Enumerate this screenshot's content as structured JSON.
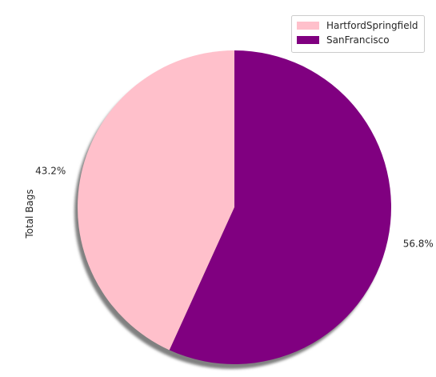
{
  "chart_data": {
    "type": "pie",
    "title": "",
    "ylabel": "Total Bags",
    "categories": [
      "HartfordSpringfield",
      "SanFrancisco"
    ],
    "values": [
      43.2,
      56.8
    ],
    "labels": [
      "43.2%",
      "56.8%"
    ],
    "colors": [
      "#ffc0cb",
      "#800080"
    ],
    "start_angle_deg": 90,
    "direction": "counterclockwise",
    "shadow": true,
    "legend": {
      "placement": "top-right",
      "entries": [
        "HartfordSpringfield",
        "SanFrancisco"
      ]
    }
  }
}
